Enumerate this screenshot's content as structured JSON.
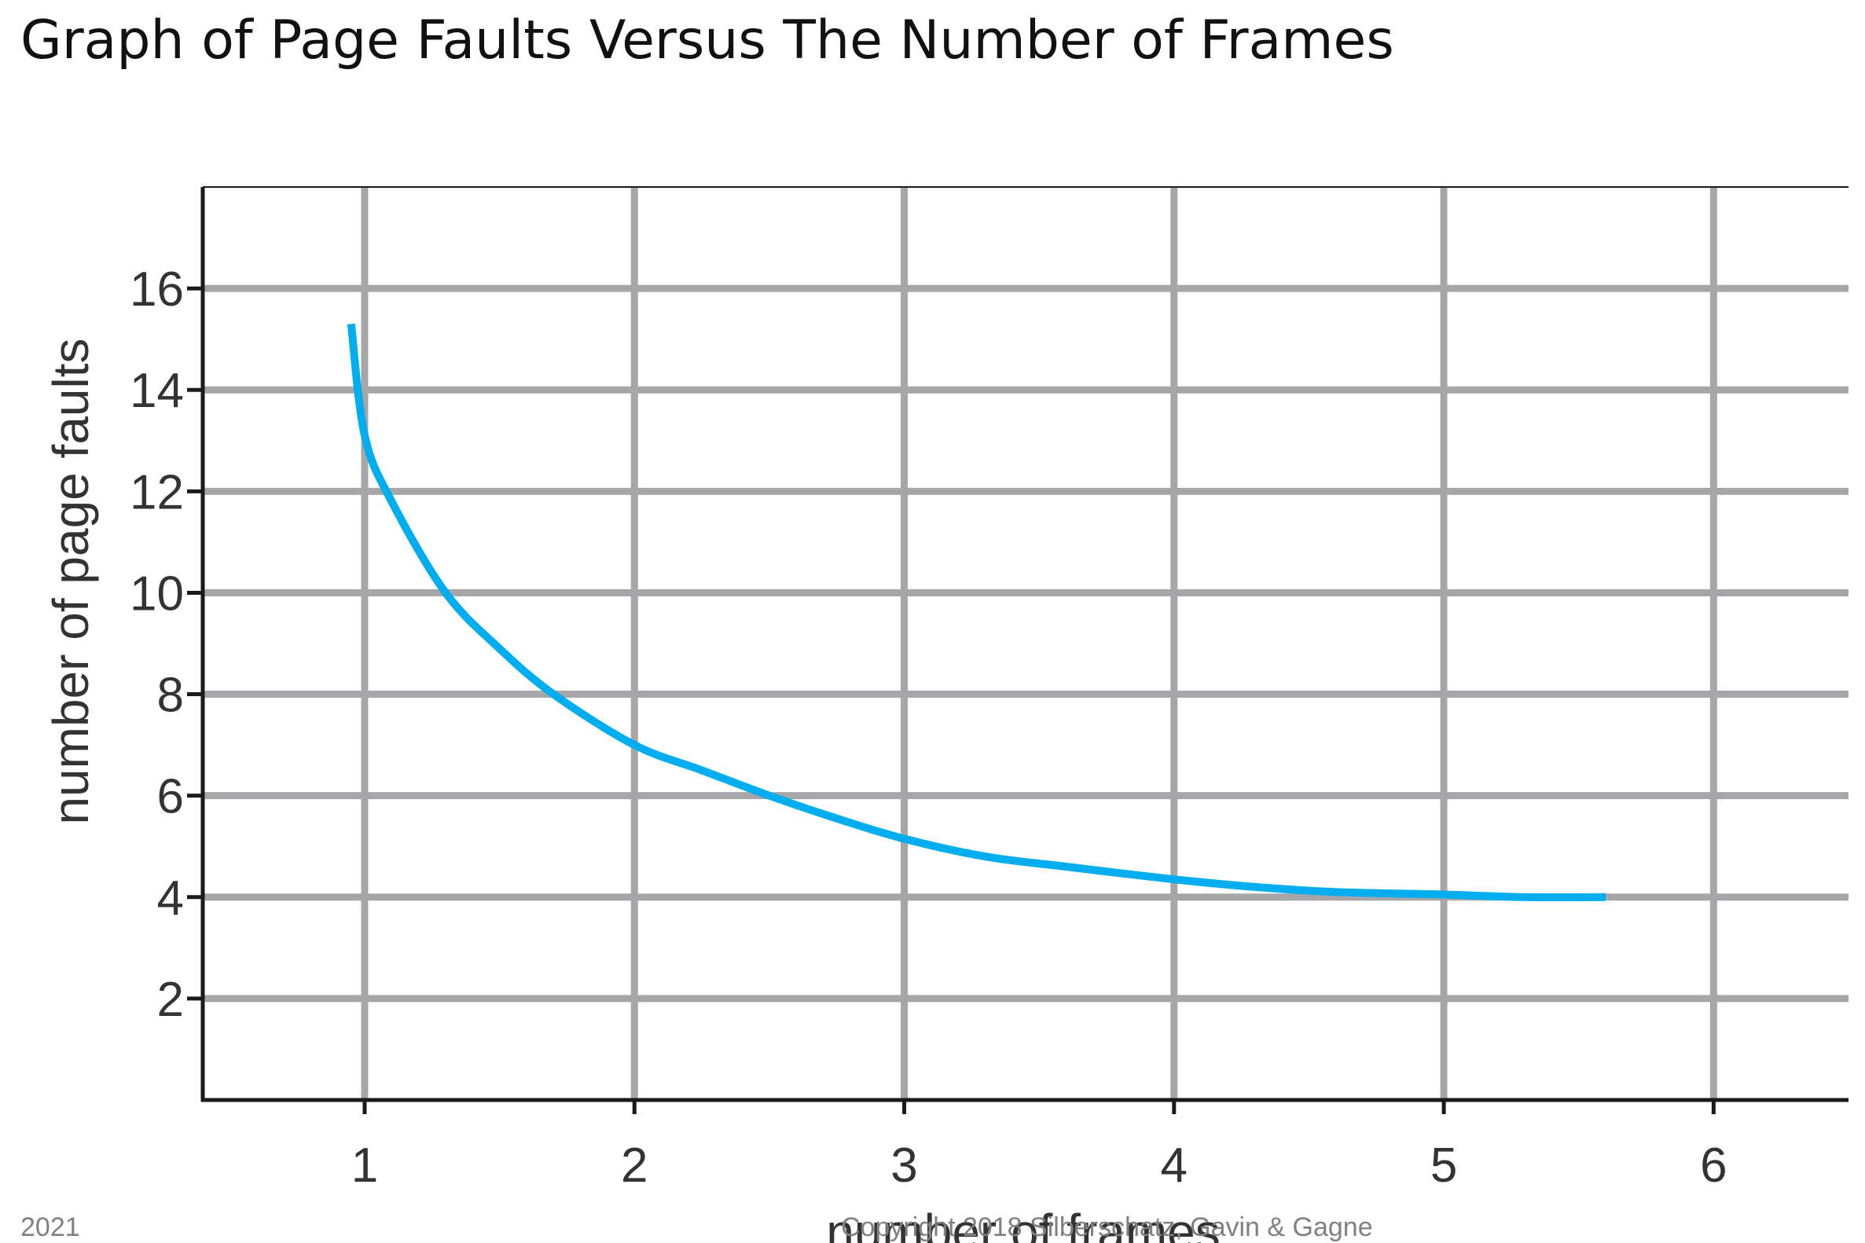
{
  "slide": {
    "title": "Graph of Page Faults Versus The Number of Frames",
    "footer_year": "2021",
    "footer_copyright": "Copyright 2018 Silberschatz, Gavin & Gagne"
  },
  "chart_data": {
    "type": "line",
    "title": "",
    "xlabel": "number of frames",
    "ylabel": "number of page faults",
    "xlim": [
      0.4,
      6.5
    ],
    "ylim": [
      0,
      18
    ],
    "x_ticks": [
      1,
      2,
      3,
      4,
      5,
      6
    ],
    "y_ticks": [
      2,
      4,
      6,
      8,
      10,
      12,
      14,
      16
    ],
    "x_tick_labels": [
      "1",
      "2",
      "3",
      "4",
      "5",
      "6"
    ],
    "y_tick_labels": [
      "2",
      "4",
      "6",
      "8",
      "10",
      "12",
      "14",
      "16"
    ],
    "grid": true,
    "legend": "none",
    "series": [
      {
        "color": "#00aeef",
        "points": [
          [
            0.95,
            15.3
          ],
          [
            1.0,
            13.1
          ],
          [
            1.1,
            11.8
          ],
          [
            1.3,
            10.0
          ],
          [
            1.5,
            8.9
          ],
          [
            1.7,
            8.0
          ],
          [
            2.0,
            7.0
          ],
          [
            2.25,
            6.5
          ],
          [
            2.5,
            6.0
          ],
          [
            2.75,
            5.55
          ],
          [
            3.0,
            5.15
          ],
          [
            3.3,
            4.8
          ],
          [
            3.6,
            4.6
          ],
          [
            4.0,
            4.35
          ],
          [
            4.3,
            4.2
          ],
          [
            4.6,
            4.1
          ],
          [
            5.0,
            4.05
          ],
          [
            5.3,
            4.0
          ],
          [
            5.6,
            4.0
          ]
        ]
      }
    ],
    "colors": {
      "grid": "#a6a6a8",
      "axis": "#1a1a1a",
      "text": "#333333"
    }
  }
}
